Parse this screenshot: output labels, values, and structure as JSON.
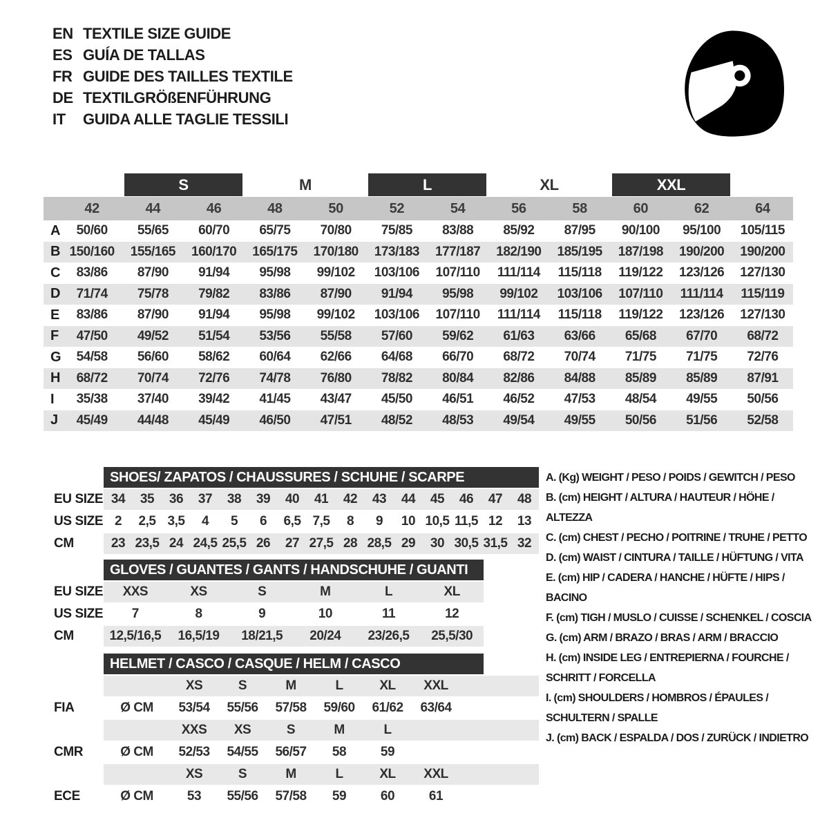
{
  "header": {
    "languages": [
      {
        "code": "EN",
        "title": "TEXTILE SIZE GUIDE"
      },
      {
        "code": "ES",
        "title": "GUÍA DE TALLAS"
      },
      {
        "code": "FR",
        "title": "GUIDE DES TAILLES TEXTILE"
      },
      {
        "code": "DE",
        "title": "TEXTILGRÖßENFÜHRUNG"
      },
      {
        "code": "IT",
        "title": "GUIDA ALLE TAGLIE TESSILI"
      }
    ],
    "helmet_icon": "full-face-helmet-icon"
  },
  "colors": {
    "dark_bar": "#333333",
    "numbers_band": "#c6c6c6",
    "row_stripe": "#e4e4e4",
    "section_band": "#e8e8e8",
    "text": "#2a2a2a"
  },
  "main_size_table": {
    "size_groups": [
      {
        "label": "S",
        "filled": true
      },
      {
        "label": "M",
        "filled": false
      },
      {
        "label": "L",
        "filled": true
      },
      {
        "label": "XL",
        "filled": false
      },
      {
        "label": "XXL",
        "filled": true
      }
    ],
    "columns": [
      "42",
      "44",
      "46",
      "48",
      "50",
      "52",
      "54",
      "56",
      "58",
      "60",
      "62",
      "64"
    ],
    "rows": [
      {
        "label": "A",
        "values": [
          "50/60",
          "55/65",
          "60/70",
          "65/75",
          "70/80",
          "75/85",
          "83/88",
          "85/92",
          "87/95",
          "90/100",
          "95/100",
          "105/115"
        ]
      },
      {
        "label": "B",
        "values": [
          "150/160",
          "155/165",
          "160/170",
          "165/175",
          "170/180",
          "173/183",
          "177/187",
          "182/190",
          "185/195",
          "187/198",
          "190/200",
          "190/200"
        ]
      },
      {
        "label": "C",
        "values": [
          "83/86",
          "87/90",
          "91/94",
          "95/98",
          "99/102",
          "103/106",
          "107/110",
          "111/114",
          "115/118",
          "119/122",
          "123/126",
          "127/130"
        ]
      },
      {
        "label": "D",
        "values": [
          "71/74",
          "75/78",
          "79/82",
          "83/86",
          "87/90",
          "91/94",
          "95/98",
          "99/102",
          "103/106",
          "107/110",
          "111/114",
          "115/119"
        ]
      },
      {
        "label": "E",
        "values": [
          "83/86",
          "87/90",
          "91/94",
          "95/98",
          "99/102",
          "103/106",
          "107/110",
          "111/114",
          "115/118",
          "119/122",
          "123/126",
          "127/130"
        ]
      },
      {
        "label": "F",
        "values": [
          "47/50",
          "49/52",
          "51/54",
          "53/56",
          "55/58",
          "57/60",
          "59/62",
          "61/63",
          "63/66",
          "65/68",
          "67/70",
          "68/72"
        ]
      },
      {
        "label": "G",
        "values": [
          "54/58",
          "56/60",
          "58/62",
          "60/64",
          "62/66",
          "64/68",
          "66/70",
          "68/72",
          "70/74",
          "71/75",
          "71/75",
          "72/76"
        ]
      },
      {
        "label": "H",
        "values": [
          "68/72",
          "70/74",
          "72/76",
          "74/78",
          "76/80",
          "78/82",
          "80/84",
          "82/86",
          "84/88",
          "85/89",
          "85/89",
          "87/91"
        ]
      },
      {
        "label": "I",
        "values": [
          "35/38",
          "37/40",
          "39/42",
          "41/45",
          "43/47",
          "45/50",
          "46/51",
          "46/52",
          "47/53",
          "48/54",
          "49/55",
          "50/56"
        ]
      },
      {
        "label": "J",
        "values": [
          "45/49",
          "44/48",
          "45/49",
          "46/50",
          "47/51",
          "48/52",
          "48/53",
          "49/54",
          "49/55",
          "50/56",
          "51/56",
          "52/58"
        ]
      }
    ]
  },
  "shoes_table": {
    "title": "SHOES/ ZAPATOS / CHAUSSURES / SCHUHE / SCARPE",
    "rows": [
      {
        "label": "EU SIZE",
        "values": [
          "34",
          "35",
          "36",
          "37",
          "38",
          "39",
          "40",
          "41",
          "42",
          "43",
          "44",
          "45",
          "46",
          "47",
          "48"
        ]
      },
      {
        "label": "US SIZE",
        "values": [
          "2",
          "2,5",
          "3,5",
          "4",
          "5",
          "6",
          "6,5",
          "7,5",
          "8",
          "9",
          "10",
          "10,5",
          "11,5",
          "12",
          "13"
        ]
      },
      {
        "label": "CM",
        "values": [
          "23",
          "23,5",
          "24",
          "24,5",
          "25,5",
          "26",
          "27",
          "27,5",
          "28",
          "28,5",
          "29",
          "30",
          "30,5",
          "31,5",
          "32"
        ]
      }
    ]
  },
  "gloves_table": {
    "title": "GLOVES / GUANTES / GANTS / HANDSCHUHE / GUANTI",
    "rows": [
      {
        "label": "EU SIZE",
        "values": [
          "XXS",
          "XS",
          "S",
          "M",
          "L",
          "XL"
        ]
      },
      {
        "label": "US SIZE",
        "values": [
          "7",
          "8",
          "9",
          "10",
          "11",
          "12"
        ]
      },
      {
        "label": "CM",
        "values": [
          "12,5/16,5",
          "16,5/19",
          "18/21,5",
          "20/24",
          "23/26,5",
          "25,5/30"
        ]
      }
    ]
  },
  "helmet_table": {
    "title": "HELMET / CASCO / CASQUE / HELM / CASCO",
    "unit_label": "Ø CM",
    "sections": [
      {
        "cert": "FIA",
        "sizes": [
          "XS",
          "S",
          "M",
          "L",
          "XL",
          "XXL"
        ],
        "values": [
          "53/54",
          "55/56",
          "57/58",
          "59/60",
          "61/62",
          "63/64"
        ]
      },
      {
        "cert": "CMR",
        "sizes": [
          "XXS",
          "XS",
          "S",
          "M",
          "L"
        ],
        "values": [
          "52/53",
          "54/55",
          "56/57",
          "58",
          "59"
        ]
      },
      {
        "cert": "ECE",
        "sizes": [
          "XS",
          "S",
          "M",
          "L",
          "XL",
          "XXL"
        ],
        "values": [
          "53",
          "55/56",
          "57/58",
          "59",
          "60",
          "61"
        ]
      }
    ]
  },
  "legend": {
    "items": [
      "A. (Kg) WEIGHT / PESO / POIDS / GEWITCH / PESO",
      "B. (cm) HEIGHT / ALTURA / HAUTEUR / HÖHE / ALTEZZA",
      "C. (cm) CHEST / PECHO / POITRINE / TRUHE / PETTO",
      "D. (cm) WAIST / CINTURA / TAILLE / HÜFTUNG / VITA",
      "E. (cm) HIP / CADERA / HANCHE / HÜFTE / HIPS / BACINO",
      "F. (cm) TIGH / MUSLO / CUISSE / SCHENKEL / COSCIA",
      "G. (cm) ARM / BRAZO / BRAS / ARM / BRACCIO",
      "H. (cm) INSIDE LEG / ENTREPIERNA / FOURCHE / SCHRITT / FORCELLA",
      "I. (cm) SHOULDERS / HOMBROS / ÉPAULES / SCHULTERN / SPALLE",
      "J. (cm) BACK / ESPALDA / DOS / ZURÜCK / INDIETRO"
    ]
  }
}
